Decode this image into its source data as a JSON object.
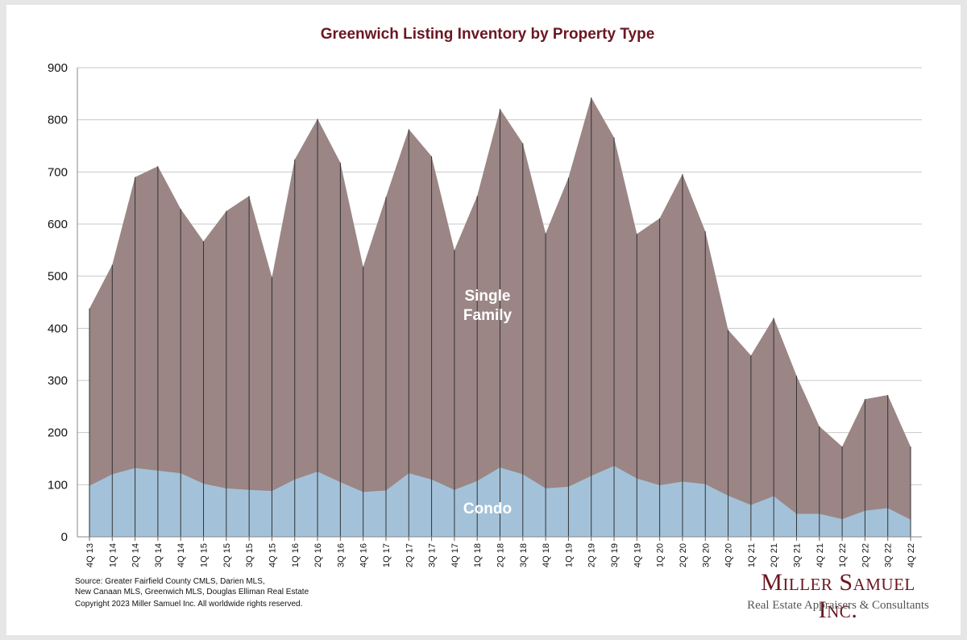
{
  "header": {
    "title": "Greenwich Listing Inventory by Property Type"
  },
  "footer": {
    "source": "Source:  Greater Fairfield County CMLS, Darien MLS,\nNew Canaan MLS, Greenwich MLS, Douglas Elliman Real Estate",
    "copyright": "Copyright 2023 Miller Samuel Inc.  All worldwide rights reserved."
  },
  "logo": {
    "name": "Miller Samuel Inc.",
    "tagline": "Real Estate Appraisers & Consultants"
  },
  "colors": {
    "single_family": "#9b8585",
    "condo": "#a3c2d9",
    "title": "#6b1622",
    "gridline": "#c8c8c8",
    "divider": "#333333"
  },
  "chart_data": {
    "type": "area",
    "stacked": true,
    "title": "Greenwich Listing Inventory by Property Type",
    "xlabel": "",
    "ylabel": "",
    "ylim": [
      0,
      900
    ],
    "yticks": [
      0,
      100,
      200,
      300,
      400,
      500,
      600,
      700,
      800,
      900
    ],
    "grid": true,
    "legend": "inline labels on areas",
    "categories": [
      "4Q 13",
      "1Q 14",
      "2Q 14",
      "3Q 14",
      "4Q 14",
      "1Q 15",
      "2Q 15",
      "3Q 15",
      "4Q 15",
      "1Q 16",
      "2Q 16",
      "3Q 16",
      "4Q 16",
      "1Q 17",
      "2Q 17",
      "3Q 17",
      "4Q 17",
      "1Q 18",
      "2Q 18",
      "3Q 18",
      "4Q 18",
      "1Q 19",
      "2Q 19",
      "3Q 19",
      "4Q 19",
      "1Q 20",
      "2Q 20",
      "3Q 20",
      "4Q 20",
      "1Q 21",
      "2Q 21",
      "3Q 21",
      "4Q 21",
      "1Q 22",
      "2Q 22",
      "3Q 22",
      "4Q 22"
    ],
    "series": [
      {
        "name": "Condo",
        "values": [
          98,
          120,
          132,
          127,
          122,
          102,
          93,
          90,
          88,
          110,
          125,
          105,
          86,
          89,
          122,
          110,
          90,
          107,
          133,
          120,
          93,
          96,
          117,
          136,
          112,
          99,
          106,
          101,
          79,
          61,
          78,
          44,
          44,
          34,
          50,
          55,
          33
        ]
      },
      {
        "name": "Single Family",
        "values": [
          340,
          402,
          558,
          584,
          507,
          465,
          532,
          564,
          410,
          614,
          677,
          613,
          432,
          563,
          660,
          620,
          460,
          547,
          688,
          635,
          489,
          593,
          726,
          630,
          469,
          512,
          590,
          485,
          318,
          287,
          342,
          265,
          168,
          139,
          214,
          217,
          140
        ]
      }
    ]
  }
}
